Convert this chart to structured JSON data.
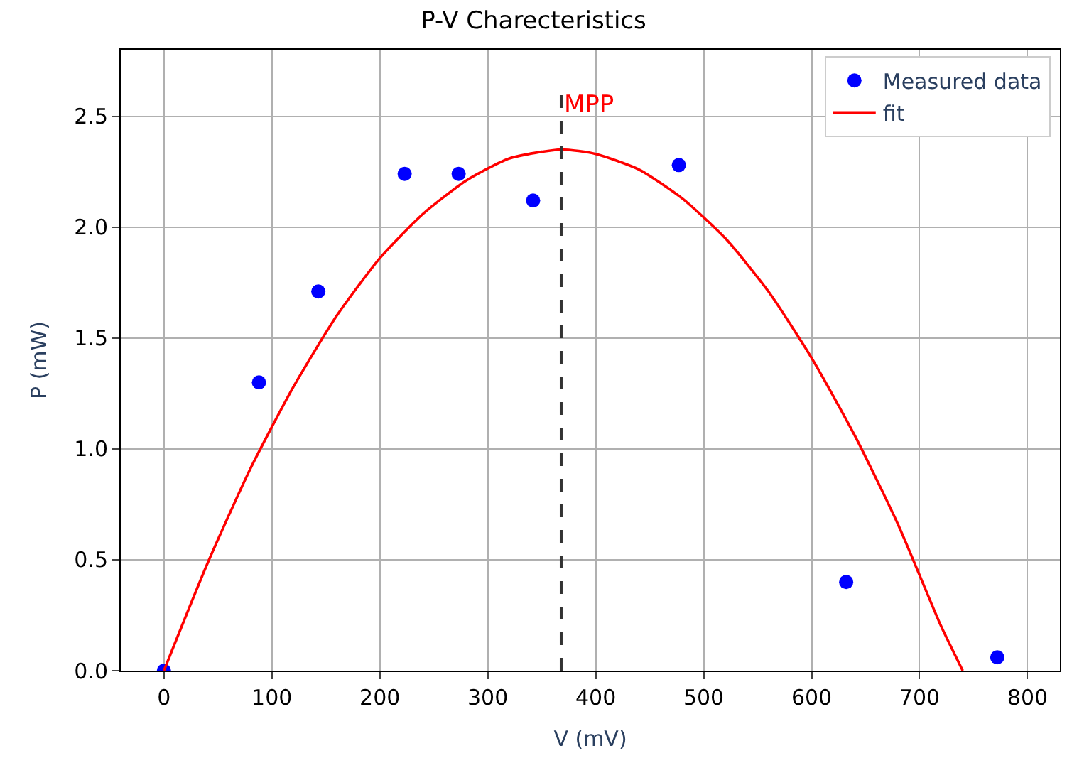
{
  "chart_data": {
    "type": "scatter",
    "title": "P-V Charecteristics",
    "xlabel": "V (mV)",
    "ylabel": "P (mW)",
    "xlim": [
      -40,
      830
    ],
    "ylim": [
      0,
      2.8
    ],
    "xticks": [
      0,
      100,
      200,
      300,
      400,
      500,
      600,
      700,
      800
    ],
    "yticks": [
      {
        "value": 0,
        "label": "0.0"
      },
      0.5,
      {
        "value": 1,
        "label": "1.0"
      },
      1.5,
      {
        "value": 2,
        "label": "2.0"
      },
      2.5
    ],
    "grid": true,
    "legend": "top right",
    "series": [
      {
        "name": "Measured data",
        "marker": "circle",
        "color": "#0000ff",
        "x": [
          0,
          88,
          143,
          223,
          273,
          342,
          477,
          632,
          772
        ],
        "values": [
          0,
          1.3,
          1.71,
          2.24,
          2.24,
          2.12,
          2.28,
          0.4,
          0.06
        ]
      },
      {
        "name": "fit",
        "type": "line",
        "marker": "none",
        "line_style": "solid",
        "color": "#ff0000",
        "x": [
          0,
          40,
          80,
          120,
          160,
          200,
          240,
          280,
          320,
          368,
          400,
          440,
          480,
          520,
          560,
          600,
          640,
          680,
          720,
          740
        ],
        "values": [
          0,
          0.48,
          0.91,
          1.28,
          1.6,
          1.86,
          2.06,
          2.21,
          2.31,
          2.35,
          2.33,
          2.26,
          2.13,
          1.95,
          1.71,
          1.41,
          1.06,
          0.66,
          0.2,
          0
        ]
      }
    ],
    "ref_lines": [
      {
        "axis": "x",
        "value": 368,
        "color": "#333333",
        "line_style": "dashed"
      }
    ],
    "annotations": [
      {
        "text": "MPP",
        "x": 368,
        "y": 2.55
      }
    ]
  }
}
